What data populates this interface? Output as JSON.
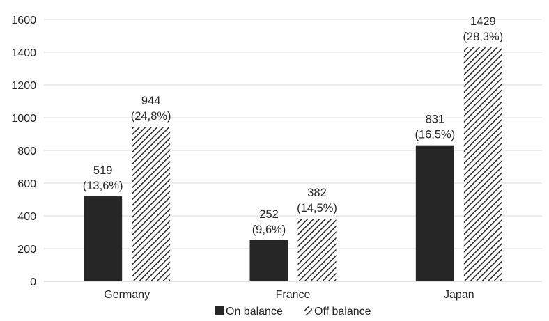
{
  "chart_data": {
    "type": "bar",
    "categories": [
      "Germany",
      "France",
      "Japan"
    ],
    "series": [
      {
        "name": "On balance",
        "values": [
          519,
          252,
          831
        ],
        "labels": [
          "519\n(13,6%)",
          "252\n(9,6%)",
          "831\n(16,5%)"
        ],
        "color": "#262626",
        "pattern": "solid"
      },
      {
        "name": "Off balance",
        "values": [
          944,
          382,
          1429
        ],
        "labels": [
          "944\n(24,8%)",
          "382\n(14,5%)",
          "1429\n(28,3%)"
        ],
        "color": "#262626",
        "pattern": "diagonal-hatch"
      }
    ],
    "title": "",
    "xlabel": "",
    "ylabel": "",
    "ylim": [
      0,
      1600
    ],
    "yticks": [
      0,
      200,
      400,
      600,
      800,
      1000,
      1200,
      1400,
      1600
    ],
    "grid": true,
    "legend_position": "bottom"
  }
}
